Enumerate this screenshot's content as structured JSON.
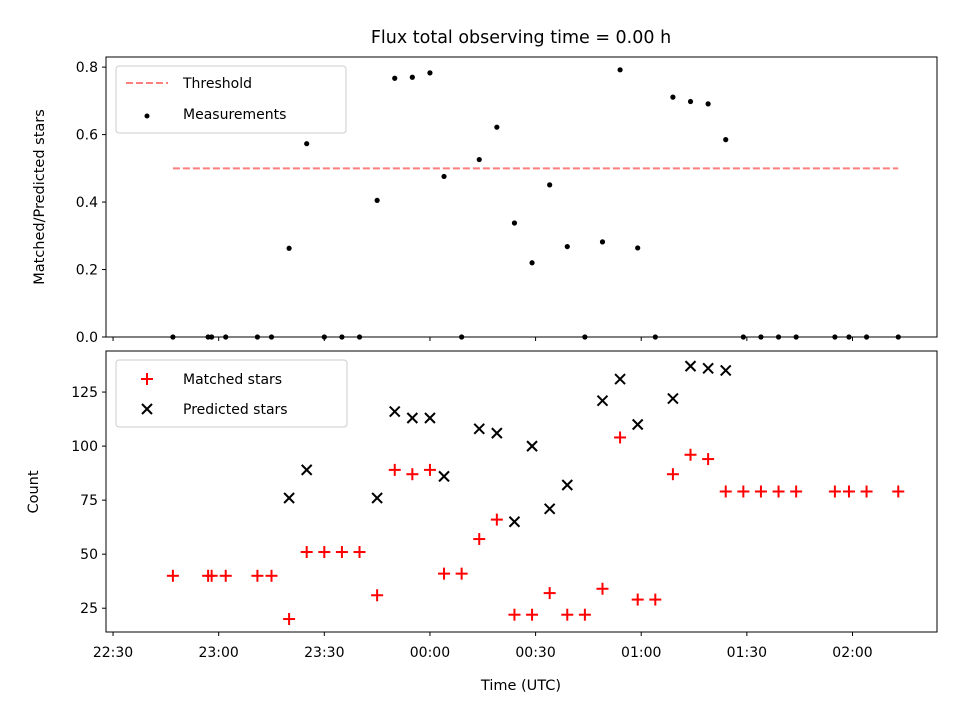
{
  "chart_data": [
    {
      "type": "scatter",
      "title": "Flux total observing time = 0.00 h",
      "xlabel": "",
      "ylabel": "Matched/Predicted stars",
      "xlim": [
        "22:28",
        "02:24"
      ],
      "ylim": [
        0,
        0.83
      ],
      "yticks": [
        0.0,
        0.2,
        0.4,
        0.6,
        0.8
      ],
      "ytick_labels": [
        "0.0",
        "0.2",
        "0.4",
        "0.6",
        "0.8"
      ],
      "legend_position": "top-left",
      "legend": [
        "Threshold",
        "Measurements"
      ],
      "threshold": {
        "name": "Threshold",
        "value": 0.5,
        "x_range": [
          "22:47",
          "02:13"
        ],
        "color": "#ff7f7f",
        "style": "dashed"
      },
      "series": [
        {
          "name": "Measurements",
          "marker": "dot",
          "color": "#000000",
          "x": [
            "22:47",
            "22:57",
            "22:58",
            "23:02",
            "23:11",
            "23:15",
            "23:20",
            "23:25",
            "23:30",
            "23:35",
            "23:40",
            "23:45",
            "23:50",
            "23:55",
            "00:00",
            "00:04",
            "00:09",
            "00:14",
            "00:19",
            "00:24",
            "00:29",
            "00:34",
            "00:39",
            "00:44",
            "00:49",
            "00:54",
            "00:59",
            "01:04",
            "01:09",
            "01:14",
            "01:19",
            "01:24",
            "01:29",
            "01:34",
            "01:39",
            "01:44",
            "01:55",
            "01:59",
            "02:04",
            "02:13"
          ],
          "y": [
            0,
            0,
            0,
            0,
            0,
            0,
            0.263,
            0.573,
            0,
            0,
            0,
            0.405,
            0.767,
            0.77,
            0.783,
            0.476,
            0,
            0.526,
            0.622,
            0.338,
            0.22,
            0.451,
            0.268,
            0,
            0.282,
            0.792,
            0.264,
            0,
            0.711,
            0.698,
            0.691,
            0.585,
            0,
            0,
            0,
            0,
            0,
            0,
            0,
            0
          ]
        }
      ]
    },
    {
      "type": "scatter",
      "title": "",
      "xlabel": "Time (UTC)",
      "ylabel": "Count",
      "xlim": [
        "22:28",
        "02:24"
      ],
      "ylim": [
        14,
        144
      ],
      "yticks": [
        25,
        50,
        75,
        100,
        125
      ],
      "ytick_labels": [
        "25",
        "50",
        "75",
        "100",
        "125"
      ],
      "xticks": [
        "22:30",
        "23:00",
        "23:30",
        "00:00",
        "00:30",
        "01:00",
        "01:30",
        "02:00"
      ],
      "xtick_labels": [
        "22:30",
        "23:00",
        "23:30",
        "00:00",
        "00:30",
        "01:00",
        "01:30",
        "02:00"
      ],
      "legend_position": "top-left",
      "legend": [
        "Matched stars",
        "Predicted stars"
      ],
      "series": [
        {
          "name": "Matched stars",
          "marker": "plus",
          "color": "#ff0000",
          "x": [
            "22:47",
            "22:57",
            "22:58",
            "23:02",
            "23:11",
            "23:15",
            "23:20",
            "23:25",
            "23:30",
            "23:35",
            "23:40",
            "23:45",
            "23:50",
            "23:55",
            "00:00",
            "00:04",
            "00:09",
            "00:14",
            "00:19",
            "00:24",
            "00:29",
            "00:34",
            "00:39",
            "00:44",
            "00:49",
            "00:54",
            "00:59",
            "01:04",
            "01:09",
            "01:14",
            "01:19",
            "01:24",
            "01:29",
            "01:34",
            "01:39",
            "01:44",
            "01:55",
            "01:59",
            "02:04",
            "02:13"
          ],
          "y": [
            40,
            40,
            40,
            40,
            40,
            40,
            20,
            51,
            51,
            51,
            51,
            31,
            89,
            87,
            89,
            41,
            41,
            57,
            66,
            22,
            22,
            32,
            22,
            22,
            34,
            104,
            29,
            29,
            87,
            96,
            94,
            79,
            79,
            79,
            79,
            79,
            79,
            79,
            79,
            79
          ]
        },
        {
          "name": "Predicted stars",
          "marker": "x",
          "color": "#000000",
          "x": [
            "23:20",
            "23:25",
            "23:45",
            "23:50",
            "23:55",
            "00:00",
            "00:04",
            "00:14",
            "00:19",
            "00:24",
            "00:29",
            "00:34",
            "00:39",
            "00:49",
            "00:54",
            "00:59",
            "01:09",
            "01:14",
            "01:19",
            "01:24"
          ],
          "y": [
            76,
            89,
            76,
            116,
            113,
            113,
            86,
            108,
            106,
            65,
            100,
            71,
            82,
            121,
            131,
            110,
            122,
            137,
            136,
            135
          ]
        }
      ]
    }
  ]
}
